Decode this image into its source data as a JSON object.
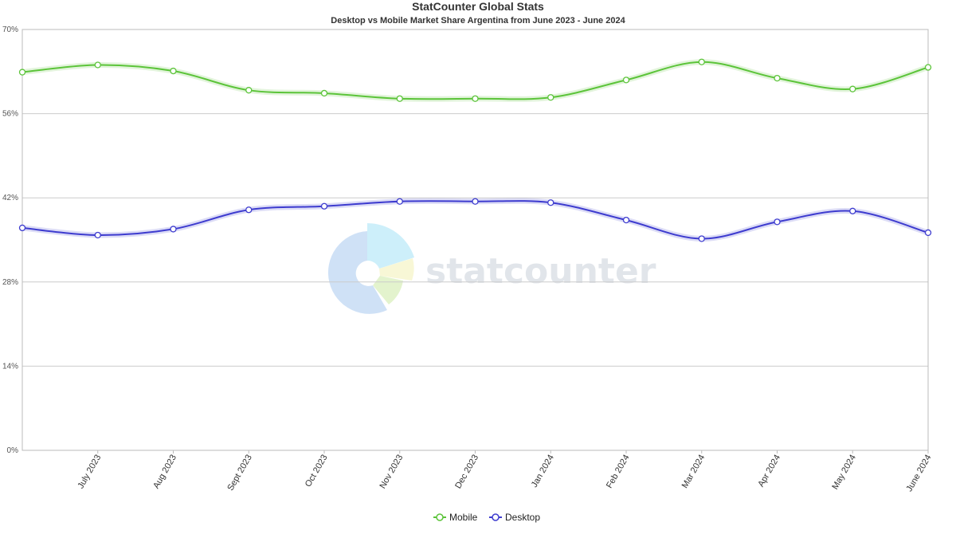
{
  "colors": {
    "mobile": "#5cc43a",
    "desktop": "#3e3ccf",
    "grid": "#cccccc",
    "plot_border": "#bbbbbb"
  },
  "chart_data": {
    "type": "line",
    "title": "StatCounter Global Stats",
    "subtitle": "Desktop vs Mobile Market Share Argentina from June 2023 - June 2024",
    "x": [
      "June 2023",
      "July 2023",
      "Aug 2023",
      "Sept 2023",
      "Oct 2023",
      "Nov 2023",
      "Dec 2023",
      "Jan 2024",
      "Feb 2024",
      "Mar 2024",
      "Apr 2024",
      "May 2024",
      "June 2024"
    ],
    "x_tick_labels": [
      "July 2023",
      "Aug 2023",
      "Sept 2023",
      "Oct 2023",
      "Nov 2023",
      "Dec 2023",
      "Jan 2024",
      "Feb 2024",
      "Mar 2024",
      "Apr 2024",
      "May 2024",
      "June 2024"
    ],
    "y_ticks": [
      "0%",
      "14%",
      "28%",
      "42%",
      "56%",
      "70%"
    ],
    "ylim": [
      0,
      70
    ],
    "grid": true,
    "legend_position": "bottom",
    "series": [
      {
        "name": "Mobile",
        "values": [
          62.9,
          64.1,
          63.1,
          59.9,
          59.4,
          58.5,
          58.5,
          58.7,
          61.6,
          64.6,
          61.9,
          60.1,
          63.7
        ]
      },
      {
        "name": "Desktop",
        "values": [
          37.0,
          35.8,
          36.8,
          40.0,
          40.6,
          41.4,
          41.4,
          41.2,
          38.3,
          35.2,
          38.0,
          39.8,
          36.2
        ]
      }
    ],
    "watermark": "statcounter"
  }
}
